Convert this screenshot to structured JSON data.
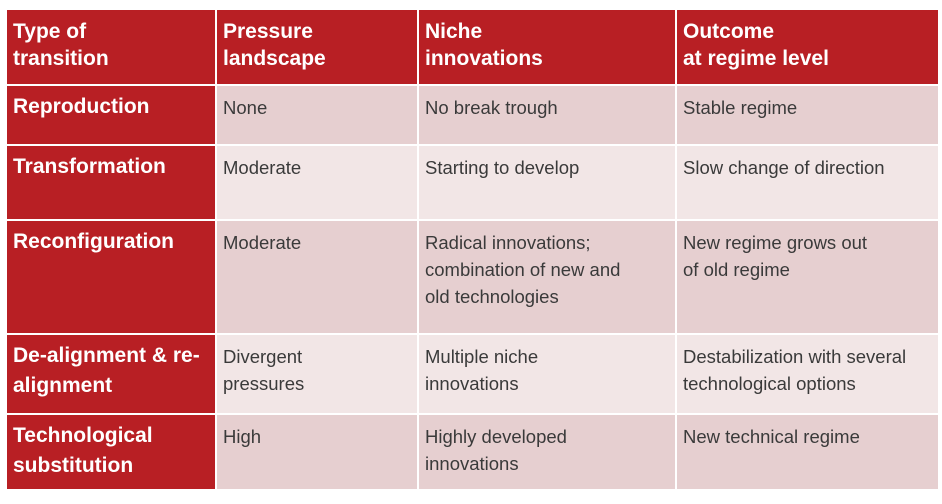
{
  "table": {
    "headers": [
      "Type of\ntransition",
      "Pressure\nlandscape",
      "Niche\ninnovations",
      "Outcome\nat regime level"
    ],
    "rows": [
      {
        "type": "Reproduction",
        "pressure": "None",
        "niche": "No break trough",
        "outcome": "Stable regime"
      },
      {
        "type": "Transformation",
        "pressure": "Moderate",
        "niche": "Starting to develop",
        "outcome": "Slow change of direction"
      },
      {
        "type": "Reconfiguration",
        "pressure": "Moderate",
        "niche": "Radical innovations;\ncombination of new and\nold technologies",
        "outcome": "New regime grows out\nof old regime"
      },
      {
        "type": "De-alignment & re-\nalignment",
        "pressure": "Divergent\npressures",
        "niche": "Multiple niche\ninnovations",
        "outcome": "Destabilization with several\ntechnological options"
      },
      {
        "type": "Technological\nsubstitution",
        "pressure": "High",
        "niche": "Highly developed\ninnovations",
        "outcome": "New technical regime"
      }
    ]
  },
  "colors": {
    "header_red": "#b81f24",
    "row_dark": "#e6cfd0",
    "row_light": "#f2e6e6",
    "body_text": "#3a3a3a"
  }
}
